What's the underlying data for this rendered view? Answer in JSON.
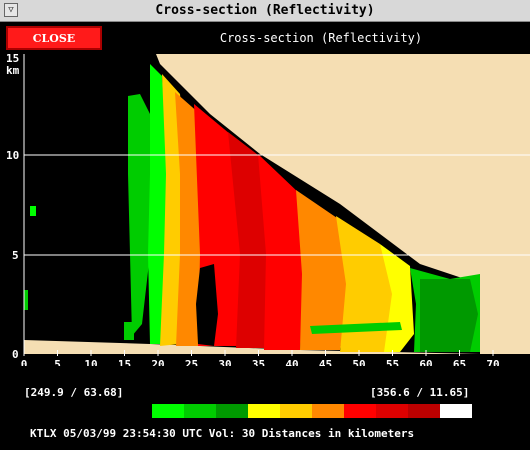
{
  "window": {
    "title": "Cross-section (Reflectivity)",
    "menu_glyph": "▽"
  },
  "toolbar": {
    "close_label": "CLOSE",
    "panel_title": "Cross-section (Reflectivity)"
  },
  "plot": {
    "y_unit_top": "15",
    "y_unit_bottom": "km",
    "y_ticks": [
      "0",
      "5",
      "10"
    ],
    "x_ticks": [
      "0",
      "5",
      "10",
      "15",
      "20",
      "25",
      "30",
      "35",
      "40",
      "45",
      "50",
      "55",
      "60",
      "65",
      "70"
    ]
  },
  "coords": {
    "left": "[249.9 /  63.68]",
    "right": "[356.6 /  11.65]"
  },
  "legend_colors": [
    "#00ff00",
    "#00cc00",
    "#009900",
    "#ffff00",
    "#ffcc00",
    "#ff8800",
    "#ff0000",
    "#dd0000",
    "#bb0000",
    "#ffffff"
  ],
  "colors": {
    "sky": "#f5deb3",
    "ground": "#f5deb3",
    "background": "#000000"
  },
  "status": {
    "text": "KTLX 05/03/99 23:54:30 UTC Vol: 30 Distances in kilometers"
  }
}
